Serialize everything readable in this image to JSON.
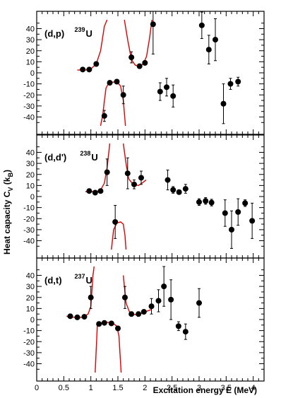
{
  "chart_data": {
    "type": "scatter",
    "xlabel": "Excitation energy E (MeV)",
    "ylabel": "Heat capacity C_V (k_B)",
    "ylabel_parts": {
      "main": "Heat capacity C",
      "sub1": "V",
      "paren_open": " (k",
      "sub2": "B",
      "paren_close": ")"
    },
    "xlim": [
      0,
      4.2
    ],
    "ylim": [
      -48,
      48
    ],
    "x_ticks": [
      "0",
      "0.5",
      "1",
      "1.5",
      "2",
      "2.5",
      "3",
      "3.5",
      "4"
    ],
    "y_ticks": [
      "-40",
      "-30",
      "-20",
      "-10",
      "0",
      "10",
      "20",
      "30",
      "40"
    ],
    "colors": {
      "points": "#000000",
      "fit": "#e00000",
      "frame": "#000000"
    },
    "panels": [
      {
        "label": "(d,p)",
        "isotope_mass": "239",
        "isotope_symbol": "U",
        "points": [
          {
            "x": 0.85,
            "y": 3,
            "err": 1.5
          },
          {
            "x": 0.97,
            "y": 3,
            "err": 1.5
          },
          {
            "x": 1.1,
            "y": 8,
            "err": 2
          },
          {
            "x": 1.25,
            "y": -39,
            "err": 5
          },
          {
            "x": 1.35,
            "y": -9,
            "err": 2
          },
          {
            "x": 1.48,
            "y": -8,
            "err": 2
          },
          {
            "x": 1.6,
            "y": -20,
            "err": 8
          },
          {
            "x": 1.75,
            "y": 14,
            "err": 5
          },
          {
            "x": 1.9,
            "y": 6,
            "err": 2
          },
          {
            "x": 2.0,
            "y": 9,
            "err": 2
          },
          {
            "x": 2.15,
            "y": 44,
            "err": 27
          },
          {
            "x": 2.28,
            "y": -17,
            "err": 8
          },
          {
            "x": 2.4,
            "y": -13,
            "err": 8
          },
          {
            "x": 2.52,
            "y": -21,
            "err": 10
          },
          {
            "x": 3.05,
            "y": 43,
            "err": 12
          },
          {
            "x": 3.18,
            "y": 21,
            "err": 13
          },
          {
            "x": 3.3,
            "y": 30,
            "err": 19
          },
          {
            "x": 3.45,
            "y": -28,
            "err": 18
          },
          {
            "x": 3.58,
            "y": -10,
            "err": 5
          },
          {
            "x": 3.72,
            "y": -8,
            "err": 4
          }
        ],
        "fit": [
          [
            [
              0.75,
              2.5
            ],
            [
              0.9,
              2.5
            ],
            [
              1.0,
              3.5
            ],
            [
              1.1,
              8
            ],
            [
              1.18,
              20
            ],
            [
              1.25,
              42
            ],
            [
              1.3,
              48
            ]
          ],
          [
            [
              1.18,
              -48
            ],
            [
              1.22,
              -38
            ],
            [
              1.28,
              -14
            ],
            [
              1.33,
              -9
            ],
            [
              1.4,
              -8.5
            ],
            [
              1.48,
              -8
            ],
            [
              1.55,
              -12
            ],
            [
              1.6,
              -25
            ],
            [
              1.64,
              -48
            ]
          ],
          [
            [
              1.62,
              48
            ],
            [
              1.68,
              30
            ],
            [
              1.75,
              12
            ],
            [
              1.82,
              7
            ],
            [
              1.9,
              6
            ],
            [
              1.97,
              8
            ],
            [
              2.03,
              15
            ],
            [
              2.08,
              30
            ],
            [
              2.13,
              48
            ]
          ]
        ]
      },
      {
        "label": "(d,d')",
        "isotope_mass": "238",
        "isotope_symbol": "U",
        "points": [
          {
            "x": 0.97,
            "y": 5,
            "err": 1.5
          },
          {
            "x": 1.08,
            "y": 3.5,
            "err": 1.5
          },
          {
            "x": 1.18,
            "y": 5,
            "err": 1.5
          },
          {
            "x": 1.3,
            "y": 22,
            "err": 12
          },
          {
            "x": 1.45,
            "y": -23,
            "err": 15
          },
          {
            "x": 1.68,
            "y": 21,
            "err": 14
          },
          {
            "x": 1.8,
            "y": 11,
            "err": 4
          },
          {
            "x": 1.93,
            "y": 17,
            "err": 6
          },
          {
            "x": 2.42,
            "y": 15,
            "err": 9
          },
          {
            "x": 2.52,
            "y": 6,
            "err": 3
          },
          {
            "x": 2.63,
            "y": 4,
            "err": 2
          },
          {
            "x": 2.75,
            "y": 7,
            "err": 4
          },
          {
            "x": 3.0,
            "y": -5,
            "err": 3
          },
          {
            "x": 3.12,
            "y": -4,
            "err": 3
          },
          {
            "x": 3.23,
            "y": -5.5,
            "err": 3
          },
          {
            "x": 3.48,
            "y": -15,
            "err": 12
          },
          {
            "x": 3.6,
            "y": -30,
            "err": 17
          },
          {
            "x": 3.72,
            "y": -14,
            "err": 12
          },
          {
            "x": 3.85,
            "y": -6,
            "err": 3
          },
          {
            "x": 3.98,
            "y": -22,
            "err": 16
          }
        ],
        "fit": [
          [
            [
              0.9,
              4.5
            ],
            [
              1.0,
              4.5
            ],
            [
              1.1,
              4.5
            ],
            [
              1.18,
              6
            ],
            [
              1.25,
              12
            ],
            [
              1.3,
              26
            ],
            [
              1.35,
              48
            ]
          ],
          [
            [
              1.38,
              -48
            ],
            [
              1.42,
              -30
            ],
            [
              1.48,
              -24
            ],
            [
              1.55,
              -23
            ],
            [
              1.6,
              -25
            ],
            [
              1.63,
              -35
            ],
            [
              1.65,
              -48
            ]
          ],
          [
            [
              1.6,
              48
            ],
            [
              1.65,
              30
            ],
            [
              1.7,
              16
            ],
            [
              1.78,
              11
            ],
            [
              1.88,
              10
            ],
            [
              1.97,
              13
            ],
            [
              2.02,
              15
            ]
          ]
        ]
      },
      {
        "label": "(d,t)",
        "isotope_mass": "237",
        "isotope_symbol": "U",
        "points": [
          {
            "x": 0.62,
            "y": 3,
            "err": 1.2
          },
          {
            "x": 0.75,
            "y": 2,
            "err": 1.2
          },
          {
            "x": 0.88,
            "y": 2.5,
            "err": 1.2
          },
          {
            "x": 1.0,
            "y": 20,
            "err": 10
          },
          {
            "x": 1.15,
            "y": -4,
            "err": 1.5
          },
          {
            "x": 1.25,
            "y": -3,
            "err": 1.5
          },
          {
            "x": 1.38,
            "y": -3.5,
            "err": 1.5
          },
          {
            "x": 1.5,
            "y": -8,
            "err": 2
          },
          {
            "x": 1.63,
            "y": 20,
            "err": 10
          },
          {
            "x": 1.75,
            "y": 5,
            "err": 2
          },
          {
            "x": 1.88,
            "y": 5,
            "err": 2
          },
          {
            "x": 1.98,
            "y": 7,
            "err": 2
          },
          {
            "x": 2.12,
            "y": 12,
            "err": 7
          },
          {
            "x": 2.25,
            "y": 17,
            "err": 10
          },
          {
            "x": 2.35,
            "y": 30,
            "err": 18
          },
          {
            "x": 2.48,
            "y": 18,
            "err": 18
          },
          {
            "x": 2.62,
            "y": -6,
            "err": 4
          },
          {
            "x": 2.75,
            "y": -11,
            "err": 7
          },
          {
            "x": 3.0,
            "y": 15,
            "err": 13
          }
        ],
        "fit": [
          [
            [
              0.55,
              3
            ],
            [
              0.7,
              2
            ],
            [
              0.85,
              2
            ],
            [
              0.95,
              5
            ],
            [
              1.0,
              12
            ],
            [
              1.04,
              40
            ],
            [
              1.06,
              48
            ]
          ],
          [
            [
              1.08,
              -48
            ],
            [
              1.12,
              -5
            ],
            [
              1.2,
              -3
            ],
            [
              1.3,
              -2.5
            ],
            [
              1.4,
              -3
            ],
            [
              1.48,
              -6
            ],
            [
              1.52,
              -15
            ],
            [
              1.56,
              -48
            ]
          ],
          [
            [
              1.6,
              40
            ],
            [
              1.65,
              15
            ],
            [
              1.72,
              6
            ],
            [
              1.82,
              4.5
            ],
            [
              1.93,
              5.5
            ],
            [
              2.03,
              7.5
            ],
            [
              2.12,
              9
            ]
          ]
        ]
      }
    ]
  }
}
